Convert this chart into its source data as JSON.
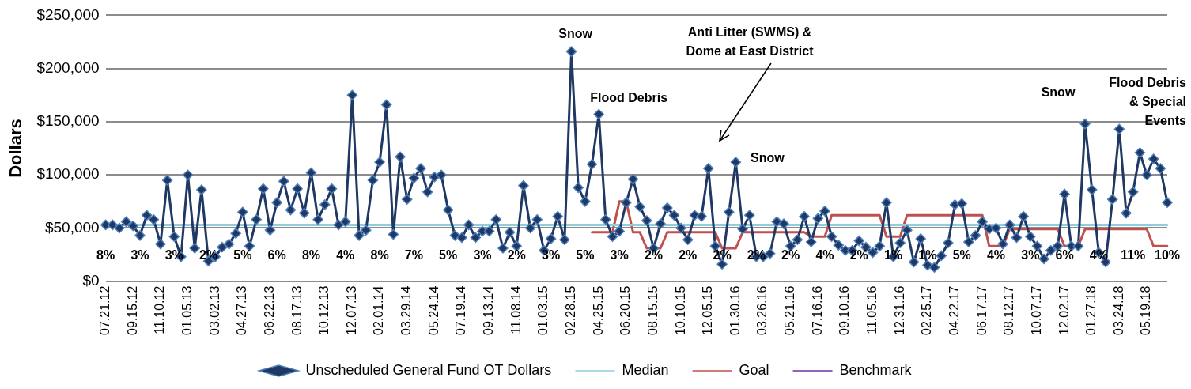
{
  "chart_data": {
    "type": "line",
    "ylabel": "Dollars",
    "categories": [
      "07.21.12",
      null,
      null,
      null,
      "09.15.12",
      null,
      null,
      null,
      "11.10.12",
      null,
      null,
      null,
      "01.05.13",
      null,
      null,
      null,
      "03.02.13",
      null,
      null,
      null,
      "04.27.13",
      null,
      null,
      null,
      "06.22.13",
      null,
      null,
      null,
      "08.17.13",
      null,
      null,
      null,
      "10.12.13",
      null,
      null,
      null,
      "12.07.13",
      null,
      null,
      null,
      "02.01.14",
      null,
      null,
      null,
      "03.29.14",
      null,
      null,
      null,
      "05.24.14",
      null,
      null,
      null,
      "07.19.14",
      null,
      null,
      null,
      "09.13.14",
      null,
      null,
      null,
      "11.08.14",
      null,
      null,
      null,
      "01.03.15",
      null,
      null,
      null,
      "02.28.15",
      null,
      null,
      null,
      "04.25.15",
      null,
      null,
      null,
      "06.20.15",
      null,
      null,
      null,
      "08.15.15",
      null,
      null,
      null,
      "10.10.15",
      null,
      null,
      null,
      "12.05.15",
      null,
      null,
      null,
      "01.30.16",
      null,
      null,
      null,
      "03.26.16",
      null,
      null,
      null,
      "05.21.16",
      null,
      null,
      null,
      "07.16.16",
      null,
      null,
      null,
      "09.10.16",
      null,
      null,
      null,
      "11.05.16",
      null,
      null,
      null,
      "12.31.16",
      null,
      null,
      null,
      "02.25.17",
      null,
      null,
      null,
      "04.22.17",
      null,
      null,
      null,
      "06.17.17",
      null,
      null,
      null,
      "08.12.17",
      null,
      null,
      null,
      "10.07.17",
      null,
      null,
      null,
      "12.02.17",
      null,
      null,
      null,
      "01.27.18",
      null,
      null,
      null,
      "03.24.18",
      null,
      null,
      null,
      "05.19.18",
      null,
      null,
      null
    ],
    "series": [
      {
        "name": "Unscheduled General Fund OT Dollars",
        "color": "#1f3864",
        "values": [
          53000,
          53000,
          50000,
          56000,
          52000,
          43000,
          62000,
          58000,
          35000,
          95000,
          42000,
          23000,
          100000,
          31000,
          86000,
          19000,
          23000,
          32000,
          35000,
          45000,
          65000,
          33000,
          58000,
          87000,
          48000,
          74000,
          94000,
          67000,
          87000,
          64000,
          102000,
          58000,
          72000,
          87000,
          53000,
          56000,
          175000,
          43000,
          48000,
          95000,
          112000,
          166000,
          44000,
          117000,
          77000,
          97000,
          106000,
          84000,
          98000,
          100000,
          67000,
          43000,
          41000,
          53000,
          41000,
          47000,
          47000,
          58000,
          31000,
          46000,
          33000,
          90000,
          50000,
          58000,
          29000,
          40000,
          61000,
          39000,
          216000,
          88000,
          75000,
          110000,
          157000,
          58000,
          42000,
          47000,
          74000,
          96000,
          70000,
          57000,
          31000,
          54000,
          69000,
          62000,
          50000,
          39000,
          62000,
          61000,
          106000,
          33000,
          16000,
          65000,
          112000,
          49000,
          62000,
          23000,
          23000,
          26000,
          56000,
          54000,
          33000,
          39000,
          61000,
          37000,
          59000,
          66000,
          42000,
          34000,
          29000,
          29000,
          38000,
          32000,
          27000,
          33000,
          74000,
          23000,
          36000,
          48000,
          18000,
          40000,
          15000,
          13000,
          24000,
          36000,
          72000,
          73000,
          37000,
          43000,
          56000,
          49000,
          50000,
          35000,
          53000,
          41000,
          61000,
          42000,
          33000,
          21000,
          29000,
          33000,
          82000,
          33000,
          33000,
          148000,
          86000,
          27000,
          18000,
          77000,
          143000,
          64000,
          84000,
          121000,
          100000,
          115000,
          106000,
          74000
        ]
      },
      {
        "name": "Median",
        "color": "#92cddc",
        "marker": "none",
        "values": [
          53000,
          53000,
          53000,
          53000,
          53000,
          53000,
          53000,
          53000,
          53000,
          53000,
          53000,
          53000,
          53000,
          53000,
          53000,
          53000,
          53000,
          53000,
          53000,
          53000,
          53000,
          53000,
          53000,
          53000,
          53000,
          53000,
          53000,
          53000,
          53000,
          53000,
          53000,
          53000,
          53000,
          53000,
          53000,
          53000,
          53000,
          53000,
          53000,
          53000,
          53000,
          53000,
          53000,
          53000,
          53000,
          53000,
          53000,
          53000,
          53000,
          53000,
          53000,
          53000,
          53000,
          53000,
          53000,
          53000,
          53000,
          53000,
          53000,
          53000,
          53000,
          53000,
          53000,
          53000,
          53000,
          53000,
          53000,
          53000,
          53000,
          53000,
          53000,
          53000,
          53000,
          53000,
          53000,
          53000,
          53000,
          53000,
          53000,
          53000,
          53000,
          53000,
          53000,
          53000,
          53000,
          53000,
          53000,
          53000,
          53000,
          53000,
          53000,
          53000,
          53000,
          53000,
          53000,
          53000,
          53000,
          53000,
          53000,
          53000,
          53000,
          53000,
          53000,
          53000,
          53000,
          53000,
          53000,
          53000,
          53000,
          53000,
          53000,
          53000,
          53000,
          53000,
          53000,
          53000,
          53000,
          53000,
          53000,
          53000,
          53000,
          53000,
          53000,
          53000,
          53000,
          53000,
          53000,
          53000,
          53000,
          53000,
          53000,
          53000,
          53000,
          53000,
          53000,
          53000,
          53000,
          53000,
          53000,
          53000,
          53000,
          53000,
          53000,
          53000,
          53000,
          53000,
          53000,
          53000,
          53000,
          53000,
          53000,
          53000,
          53000,
          53000,
          53000,
          53000
        ]
      },
      {
        "name": "Goal",
        "color": "#c0504d",
        "marker": "none",
        "values": [
          null,
          null,
          null,
          null,
          null,
          null,
          null,
          null,
          null,
          null,
          null,
          null,
          null,
          null,
          null,
          null,
          null,
          null,
          null,
          null,
          null,
          null,
          null,
          null,
          null,
          null,
          null,
          null,
          null,
          null,
          null,
          null,
          null,
          null,
          null,
          null,
          null,
          null,
          null,
          null,
          null,
          null,
          null,
          null,
          null,
          null,
          null,
          null,
          null,
          null,
          null,
          null,
          null,
          null,
          null,
          null,
          null,
          null,
          null,
          null,
          null,
          null,
          null,
          null,
          null,
          null,
          null,
          null,
          null,
          null,
          null,
          46000,
          46000,
          46000,
          46000,
          75000,
          75000,
          46000,
          46000,
          31000,
          31000,
          31000,
          46000,
          46000,
          46000,
          46000,
          46000,
          46000,
          46000,
          46000,
          31000,
          31000,
          31000,
          46000,
          46000,
          46000,
          46000,
          46000,
          46000,
          46000,
          46000,
          46000,
          46000,
          42000,
          42000,
          42000,
          62000,
          62000,
          62000,
          62000,
          62000,
          62000,
          62000,
          62000,
          42000,
          42000,
          42000,
          62000,
          62000,
          62000,
          62000,
          62000,
          62000,
          62000,
          62000,
          62000,
          62000,
          62000,
          62000,
          33000,
          33000,
          33000,
          49000,
          49000,
          49000,
          49000,
          49000,
          49000,
          49000,
          49000,
          33000,
          33000,
          33000,
          49000,
          49000,
          49000,
          49000,
          49000,
          49000,
          49000,
          49000,
          49000,
          49000,
          33000,
          33000,
          33000
        ]
      },
      {
        "name": "Benchmark",
        "color": "#7030a0",
        "marker": "none",
        "values": [
          null,
          null,
          null,
          null,
          null,
          null,
          null,
          null,
          null,
          null,
          null,
          null,
          null,
          null,
          null,
          null,
          null,
          null,
          null,
          null,
          null,
          null,
          null,
          null,
          null,
          null,
          null,
          null,
          null,
          null,
          null,
          null,
          null,
          null,
          null,
          null,
          null,
          null,
          null,
          null,
          null,
          null,
          null,
          null,
          null,
          null,
          null,
          null,
          null,
          null,
          null,
          null,
          null,
          null,
          null,
          null,
          null,
          null,
          null,
          null,
          null,
          null,
          null,
          null,
          null,
          null,
          null,
          null,
          null,
          null,
          null,
          null,
          null,
          null,
          null,
          null,
          null,
          null,
          null,
          null,
          null,
          null,
          null,
          null,
          null,
          null,
          null,
          null,
          null,
          null,
          null,
          null,
          null,
          null,
          null,
          null,
          null,
          null,
          null,
          null,
          null,
          null,
          null,
          null,
          null,
          null,
          null,
          null,
          null,
          null,
          null,
          null,
          null,
          null,
          null,
          null,
          null,
          null,
          null,
          null,
          null,
          null,
          null,
          null,
          null,
          null,
          null,
          null,
          null,
          null,
          null,
          null,
          null,
          null,
          null,
          null,
          null,
          null,
          null,
          null,
          null,
          null,
          null,
          null,
          null,
          null,
          null,
          null,
          null,
          null,
          null,
          null,
          null,
          null,
          null,
          null
        ]
      }
    ],
    "ylim": [
      0,
      250000
    ],
    "yticks": [
      {
        "value": 0,
        "label": "$0"
      },
      {
        "value": 50000,
        "label": "$50,000"
      },
      {
        "value": 100000,
        "label": "$100,000"
      },
      {
        "value": 150000,
        "label": "$150,000"
      },
      {
        "value": 200000,
        "label": "$200,000"
      },
      {
        "value": 250000,
        "label": "$250,000"
      }
    ],
    "grid": "y",
    "legend": "bottom",
    "marker": "diamond",
    "annotations": [
      {
        "text": "Snow",
        "x": "02.28.15",
        "y": 216000
      },
      {
        "text": "Flood Debris",
        "x": "04.25.15",
        "y": 157000
      },
      "Anti Litter (SWMS) &\nDome at East District",
      {
        "text": "Snow",
        "x": "01.30.16",
        "y": 112000
      },
      "Snow",
      {
        "text": "Flood Debris\n& Special\nEvents",
        "x": "03.24.18",
        "y": 143000
      },
      "8%",
      "3%",
      "3%",
      "2%",
      "5%",
      "6%",
      "8%",
      "4%",
      "8%",
      "7%",
      "5%",
      "3%",
      "2%",
      "3%",
      "5%",
      "3%",
      "2%",
      "2%",
      "2%",
      "2%",
      "2%",
      "4%",
      "2%",
      "1%",
      "1%",
      "5%",
      "4%",
      "3%",
      "6%",
      "4%",
      "11%",
      "10%"
    ]
  }
}
